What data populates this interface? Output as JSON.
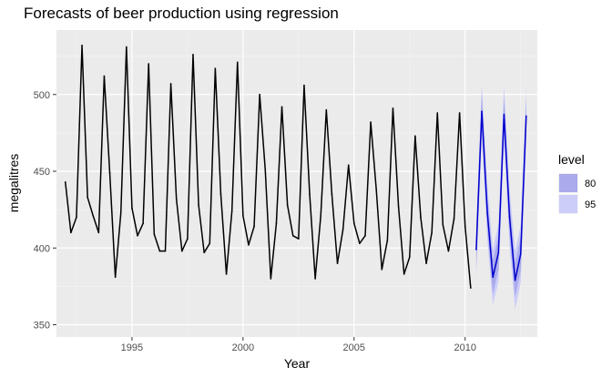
{
  "chart_data": {
    "type": "line",
    "title": "Forecasts of beer production using regression",
    "xlabel": "Year",
    "ylabel": "megalitres",
    "xlim": [
      1991.6,
      2013.25
    ],
    "ylim": [
      342,
      542
    ],
    "x_ticks": [
      1995,
      2000,
      2005,
      2010
    ],
    "x_tick_labels": [
      "1995",
      "2000",
      "2005",
      "2010"
    ],
    "y_ticks": [
      350,
      400,
      450,
      500
    ],
    "y_tick_labels": [
      "350",
      "400",
      "450",
      "500"
    ],
    "grid": true,
    "legend": {
      "title": "level",
      "position": "right",
      "entries": [
        {
          "label": "80",
          "color": "#aaaaec"
        },
        {
          "label": "95",
          "color": "#cccdf8"
        }
      ]
    },
    "colors": {
      "panel": "#ebebeb",
      "grid_major": "#ffffff",
      "actual_line": "#000000",
      "forecast_line": "#0000cc",
      "interval_80": "#aaaaec",
      "interval_95": "#cccdf8"
    },
    "series": [
      {
        "role": "actual",
        "x": [
          1992.0,
          1992.25,
          1992.5,
          1992.75,
          1993.0,
          1993.25,
          1993.5,
          1993.75,
          1994.0,
          1994.25,
          1994.5,
          1994.75,
          1995.0,
          1995.25,
          1995.5,
          1995.75,
          1996.0,
          1996.25,
          1996.5,
          1996.75,
          1997.0,
          1997.25,
          1997.5,
          1997.75,
          1998.0,
          1998.25,
          1998.5,
          1998.75,
          1999.0,
          1999.25,
          1999.5,
          1999.75,
          2000.0,
          2000.25,
          2000.5,
          2000.75,
          2001.0,
          2001.25,
          2001.5,
          2001.75,
          2002.0,
          2002.25,
          2002.5,
          2002.75,
          2003.0,
          2003.25,
          2003.5,
          2003.75,
          2004.0,
          2004.25,
          2004.5,
          2004.75,
          2005.0,
          2005.25,
          2005.5,
          2005.75,
          2006.0,
          2006.25,
          2006.5,
          2006.75,
          2007.0,
          2007.25,
          2007.5,
          2007.75,
          2008.0,
          2008.25,
          2008.5,
          2008.75,
          2009.0,
          2009.25,
          2009.5,
          2009.75,
          2010.0,
          2010.25
        ],
        "values": [
          443,
          410,
          420,
          532,
          433,
          421,
          410,
          512,
          449,
          381,
          423,
          531,
          426,
          408,
          416,
          520,
          409,
          398,
          398,
          507,
          432,
          398,
          406,
          526,
          428,
          397,
          403,
          517,
          435,
          383,
          424,
          521,
          421,
          402,
          414,
          500,
          451,
          380,
          416,
          492,
          428,
          408,
          406,
          506,
          435,
          380,
          421,
          490,
          435,
          390,
          412,
          454,
          416,
          403,
          408,
          482,
          438,
          386,
          405,
          491,
          427,
          383,
          394,
          473,
          420,
          390,
          410,
          488,
          415,
          398,
          419,
          488,
          414,
          374
        ]
      },
      {
        "role": "forecast",
        "x": [
          2010.5,
          2010.75,
          2011.0,
          2011.25,
          2011.5,
          2011.75,
          2012.0,
          2012.25,
          2012.5,
          2012.75
        ],
        "values": [
          399,
          489,
          423,
          381,
          397,
          487,
          420,
          379,
          396,
          486
        ],
        "lo80": [
          388,
          478,
          412,
          370,
          386,
          476,
          409,
          368,
          385,
          475
        ],
        "hi80": [
          410,
          500,
          434,
          392,
          408,
          498,
          431,
          390,
          407,
          497
        ],
        "lo95": [
          381,
          471,
          405,
          363,
          378,
          468,
          401,
          360,
          377,
          467
        ],
        "hi95": [
          417,
          507,
          441,
          399,
          416,
          506,
          439,
          398,
          415,
          505
        ]
      }
    ]
  }
}
